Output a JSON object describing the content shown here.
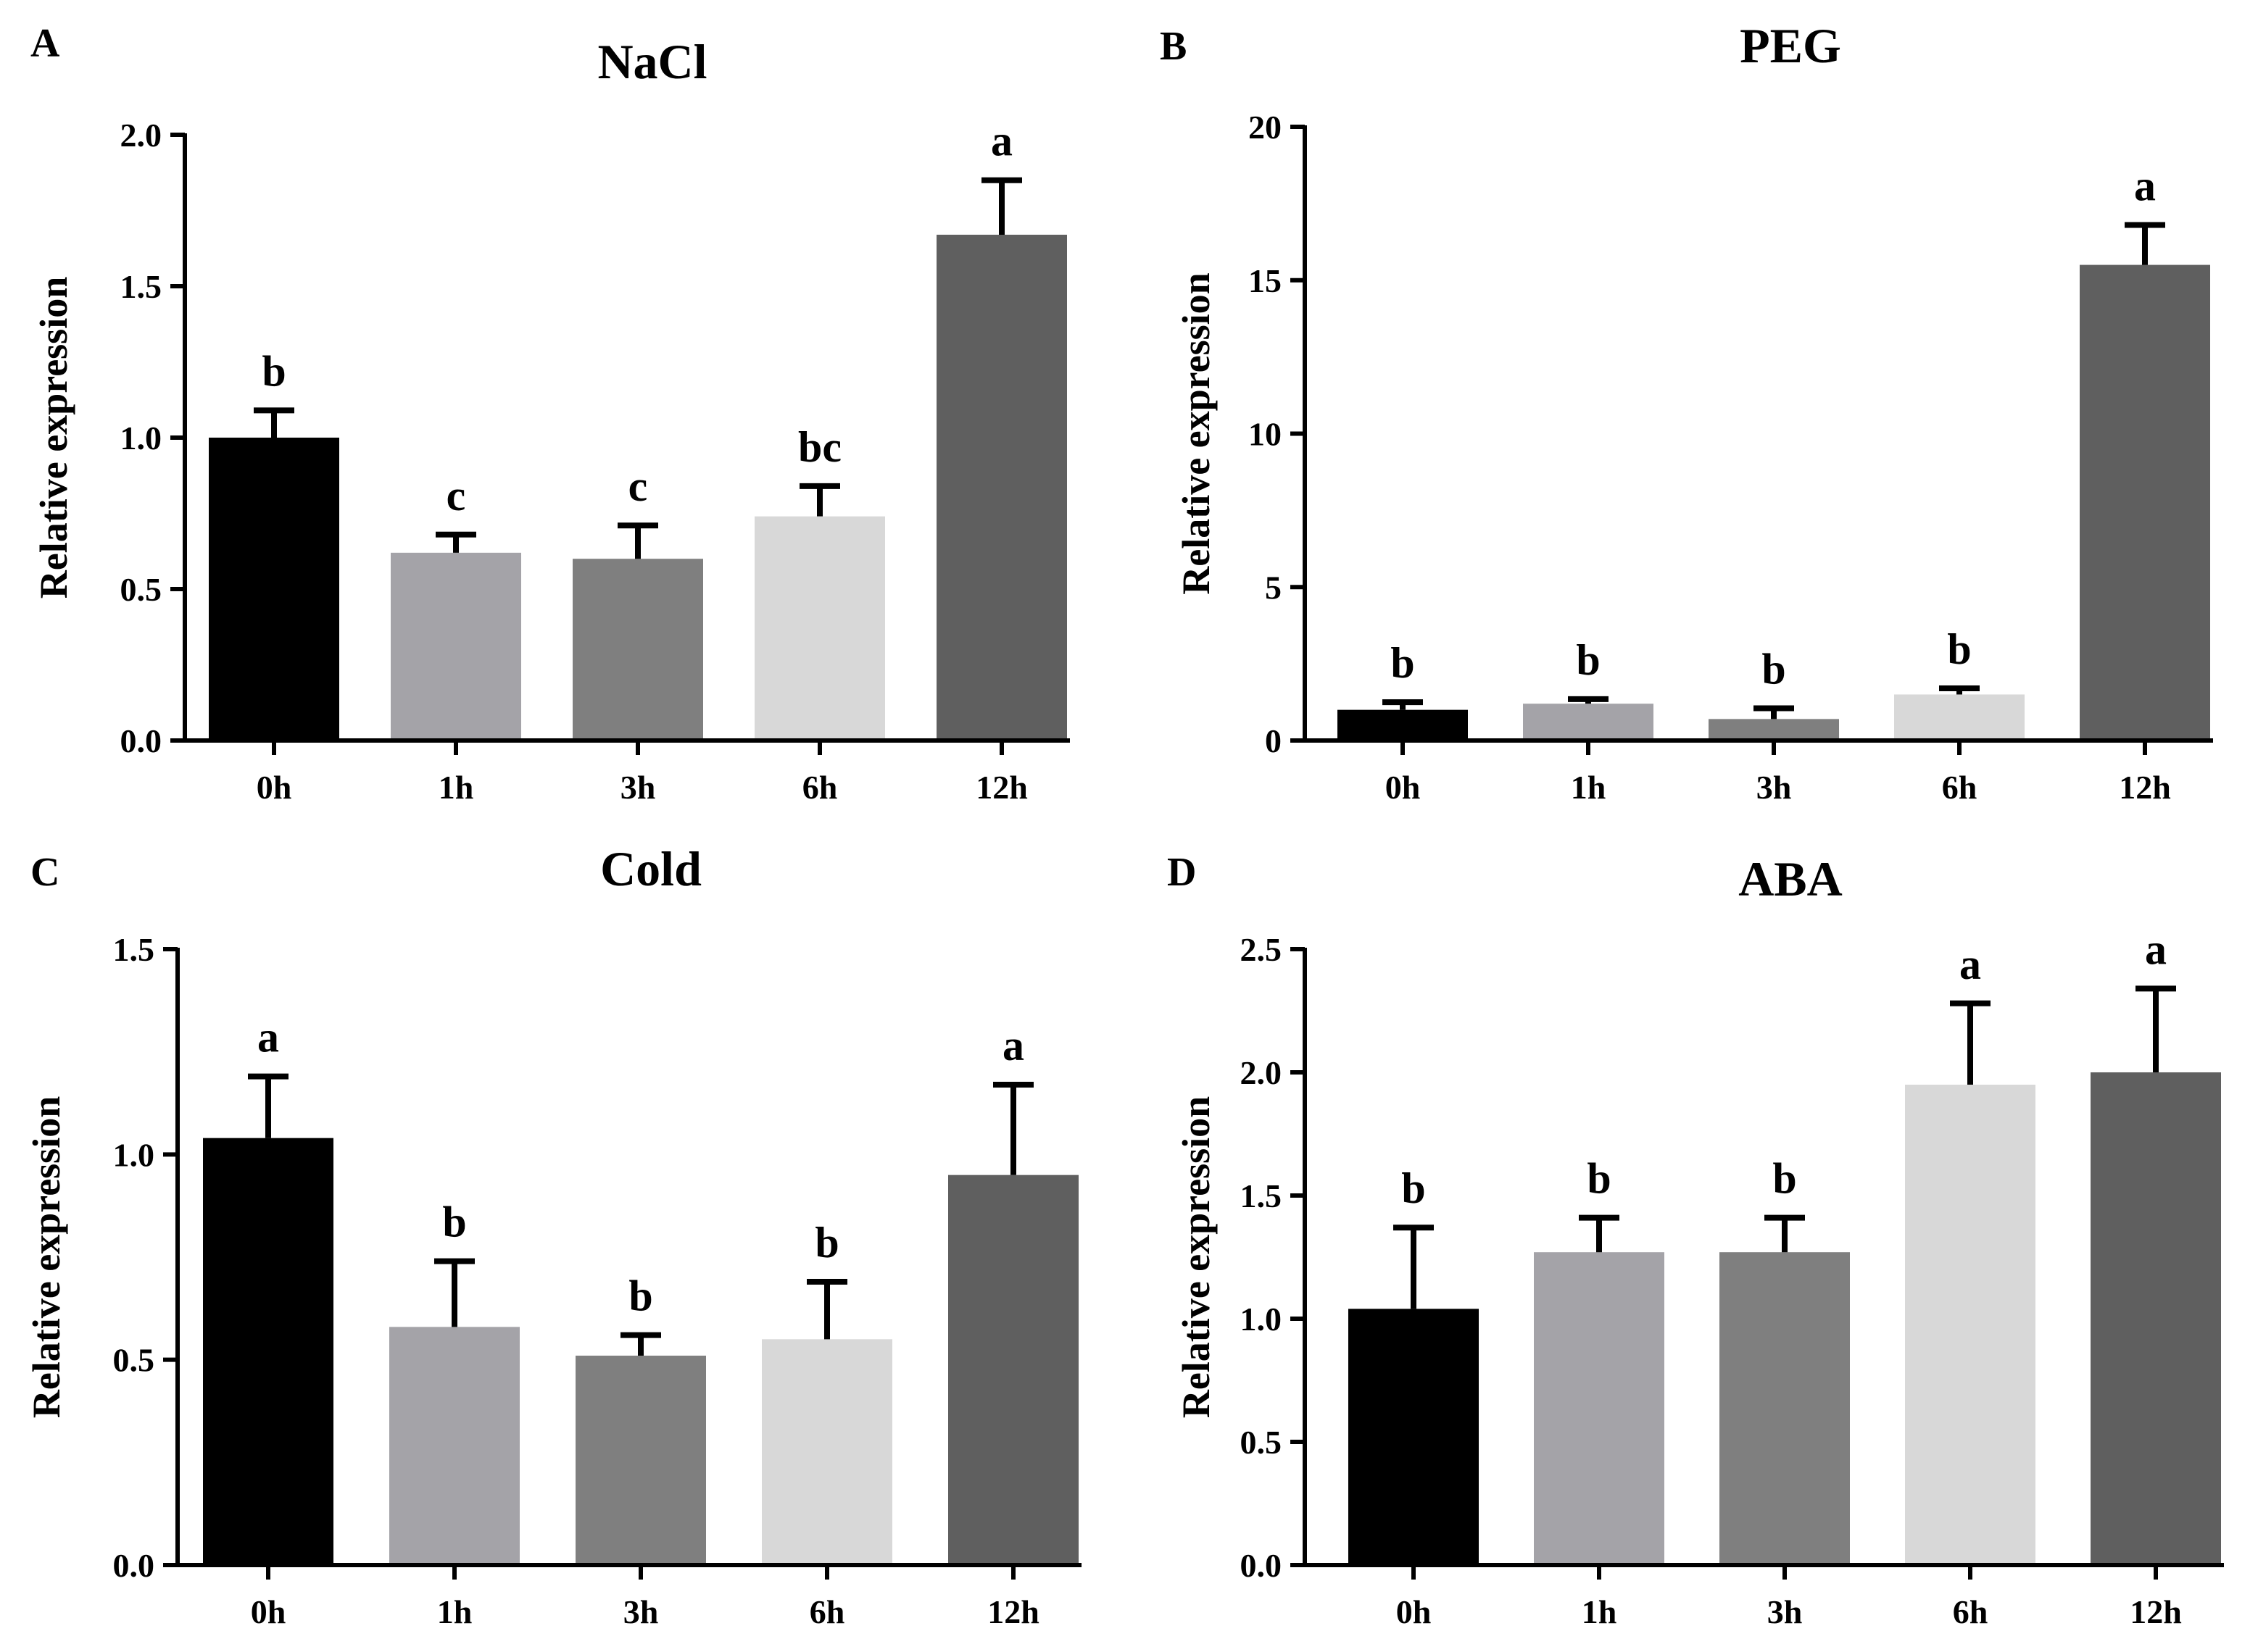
{
  "chart_data": [
    {
      "type": "bar",
      "panel": "A",
      "title": "NaCl",
      "xlabel": "",
      "ylabel": "Relative expression",
      "ylim": [
        0,
        2.0
      ],
      "yticks": [
        0.0,
        0.5,
        1.0,
        1.5,
        2.0
      ],
      "ytick_labels": [
        "0.0",
        "0.5",
        "1.0",
        "1.5",
        "2.0"
      ],
      "categories": [
        "0h",
        "1h",
        "3h",
        "6h",
        "12h"
      ],
      "values": [
        1.0,
        0.62,
        0.6,
        0.74,
        1.67
      ],
      "errors": [
        0.09,
        0.06,
        0.11,
        0.1,
        0.18
      ],
      "letters": [
        "b",
        "c",
        "c",
        "bc",
        "a"
      ],
      "colors": [
        "#000000",
        "#a4a3a8",
        "#7f7f7f",
        "#d8d8d8",
        "#5f5f5f"
      ],
      "grid": false
    },
    {
      "type": "bar",
      "panel": "B",
      "title": "PEG",
      "xlabel": "",
      "ylabel": "Relative expression",
      "ylim": [
        0,
        20
      ],
      "yticks": [
        0,
        5,
        10,
        15,
        20
      ],
      "ytick_labels": [
        "0",
        "5",
        "10",
        "15",
        "20"
      ],
      "categories": [
        "0h",
        "1h",
        "3h",
        "6h",
        "12h"
      ],
      "values": [
        1.0,
        1.2,
        0.7,
        1.5,
        15.5
      ],
      "errors": [
        0.25,
        0.15,
        0.35,
        0.2,
        1.3
      ],
      "letters": [
        "b",
        "b",
        "b",
        "b",
        "a"
      ],
      "colors": [
        "#000000",
        "#a4a3a8",
        "#7f7f7f",
        "#d8d8d8",
        "#5f5f5f"
      ],
      "grid": false
    },
    {
      "type": "bar",
      "panel": "C",
      "title": "Cold",
      "xlabel": "",
      "ylabel": "Relative expression",
      "ylim": [
        0,
        1.5
      ],
      "yticks": [
        0.0,
        0.5,
        1.0,
        1.5
      ],
      "ytick_labels": [
        "0.0",
        "0.5",
        "1.0",
        "1.5"
      ],
      "categories": [
        "0h",
        "1h",
        "3h",
        "6h",
        "12h"
      ],
      "values": [
        1.04,
        0.58,
        0.51,
        0.55,
        0.95
      ],
      "errors": [
        0.15,
        0.16,
        0.05,
        0.14,
        0.22
      ],
      "letters": [
        "a",
        "b",
        "b",
        "b",
        "a"
      ],
      "colors": [
        "#000000",
        "#a4a3a8",
        "#7f7f7f",
        "#d8d8d8",
        "#5f5f5f"
      ],
      "grid": false
    },
    {
      "type": "bar",
      "panel": "D",
      "title": "ABA",
      "xlabel": "",
      "ylabel": "Relative expression",
      "ylim": [
        0,
        2.5
      ],
      "yticks": [
        0.0,
        0.5,
        1.0,
        1.5,
        2.0,
        2.5
      ],
      "ytick_labels": [
        "0.0",
        "0.5",
        "1.0",
        "1.5",
        "2.0",
        "2.5"
      ],
      "categories": [
        "0h",
        "1h",
        "3h",
        "6h",
        "12h"
      ],
      "values": [
        1.04,
        1.27,
        1.27,
        1.95,
        2.0
      ],
      "errors": [
        0.33,
        0.14,
        0.14,
        0.33,
        0.34
      ],
      "letters": [
        "b",
        "b",
        "b",
        "a",
        "a"
      ],
      "colors": [
        "#000000",
        "#a4a3a8",
        "#7f7f7f",
        "#d8d8d8",
        "#5f5f5f"
      ],
      "grid": false
    }
  ]
}
